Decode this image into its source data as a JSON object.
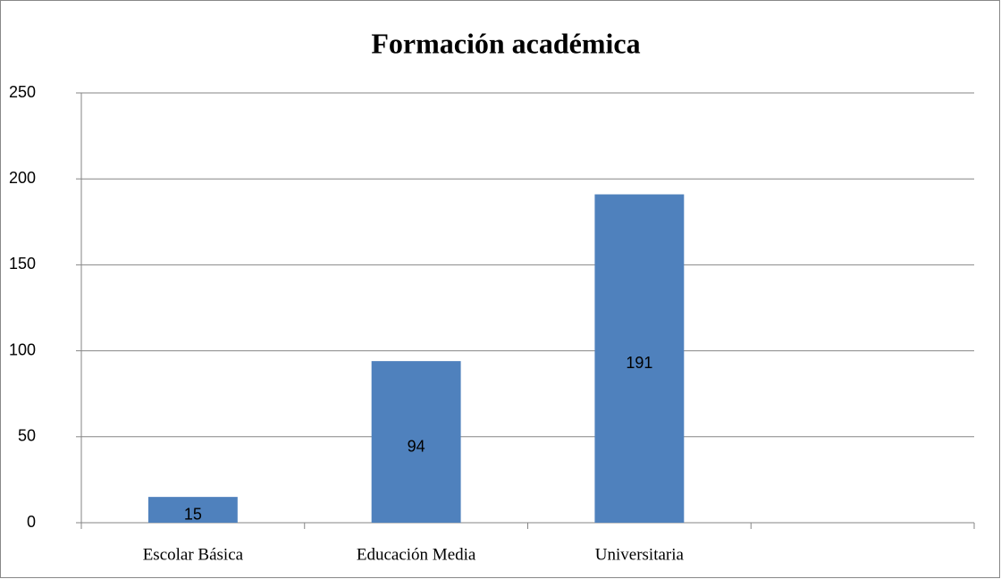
{
  "chart_data": {
    "type": "bar",
    "title": "Formación académica",
    "categories": [
      "Escolar Básica",
      "Educación Media",
      "Universitaria",
      null
    ],
    "values": [
      15,
      94,
      191,
      null
    ],
    "color": "#4f81bd",
    "ylim": [
      0,
      250
    ],
    "yticks": [
      0,
      50,
      100,
      150,
      200,
      250
    ],
    "grid": true
  }
}
